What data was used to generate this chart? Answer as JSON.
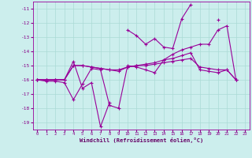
{
  "xlabel": "Windchill (Refroidissement éolien,°C)",
  "bg_color": "#cceeed",
  "line_color": "#990099",
  "x": [
    0,
    1,
    2,
    3,
    4,
    5,
    6,
    7,
    8,
    9,
    10,
    11,
    12,
    13,
    14,
    15,
    16,
    17,
    18,
    19,
    20,
    21,
    22,
    23
  ],
  "line1": [
    -16.0,
    -16.0,
    -16.0,
    -16.0,
    -14.7,
    -16.6,
    -16.2,
    -19.3,
    -17.6,
    null,
    -12.5,
    -12.9,
    -13.5,
    -13.1,
    -13.7,
    -13.8,
    -11.7,
    -10.7,
    null,
    null,
    -11.8,
    null,
    null,
    null
  ],
  "line2": [
    -16.0,
    -16.1,
    -16.1,
    -16.2,
    -17.4,
    -16.3,
    -15.2,
    -15.3,
    -17.8,
    -18.0,
    -15.0,
    -15.1,
    -15.3,
    -15.5,
    -14.6,
    -14.2,
    -13.9,
    -13.7,
    -13.5,
    -13.5,
    -12.5,
    -12.2,
    -16.0,
    null
  ],
  "line3": [
    -16.0,
    -16.0,
    -16.0,
    -16.0,
    -15.0,
    -15.0,
    -15.1,
    -15.2,
    -15.3,
    -15.3,
    -15.1,
    -15.0,
    -14.9,
    -14.8,
    -14.6,
    -14.5,
    -14.3,
    -14.1,
    -15.3,
    -15.4,
    -15.5,
    -15.3,
    -16.0,
    null
  ],
  "line4": [
    -16.0,
    -16.0,
    -16.0,
    -16.0,
    -15.0,
    -15.0,
    -15.1,
    -15.2,
    -15.3,
    -15.4,
    -15.1,
    -15.0,
    -15.0,
    -14.9,
    -14.8,
    -14.7,
    -14.6,
    -14.5,
    -15.1,
    -15.2,
    -15.3,
    -15.3,
    -16.0,
    null
  ],
  "ylim": [
    -19.5,
    -10.5
  ],
  "xlim": [
    -0.5,
    23.5
  ],
  "yticks": [
    -19,
    -18,
    -17,
    -16,
    -15,
    -14,
    -13,
    -12,
    -11
  ],
  "xticks": [
    0,
    1,
    2,
    3,
    4,
    5,
    6,
    7,
    8,
    9,
    10,
    11,
    12,
    13,
    14,
    15,
    16,
    17,
    18,
    19,
    20,
    21,
    22,
    23
  ]
}
